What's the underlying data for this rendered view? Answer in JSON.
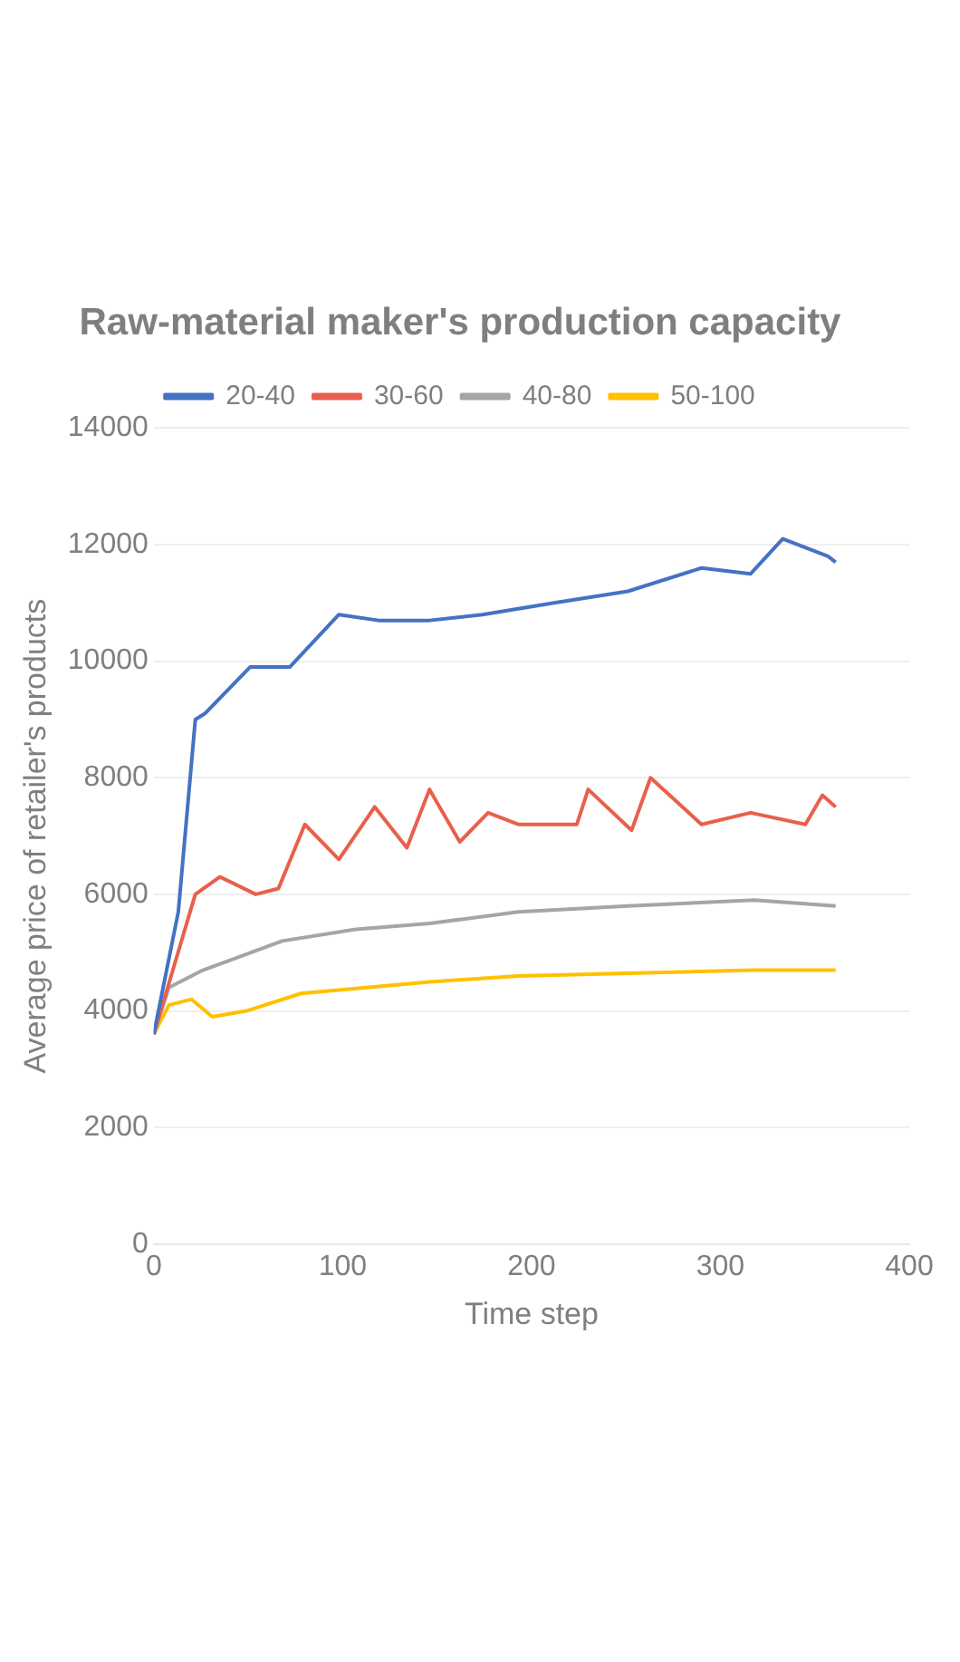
{
  "chart_data": {
    "type": "line",
    "title": "Raw-material maker's production capacity",
    "xlabel": "Time step",
    "ylabel": "Average price of retailer's products",
    "xlim": [
      0,
      400
    ],
    "xticks": [
      0,
      100,
      200,
      300,
      400
    ],
    "ylim": [
      0,
      14000
    ],
    "yticks": [
      0,
      2000,
      4000,
      6000,
      8000,
      10000,
      12000,
      14000
    ],
    "grid": "y",
    "legend": "top",
    "marker": "none",
    "line_style": "solid",
    "series": [
      {
        "name": "20-40",
        "color": "#4472c4",
        "x": [
          0,
          13,
          22,
          27,
          51,
          72,
          98,
          119,
          146,
          174,
          212,
          251,
          290,
          316,
          333,
          357,
          361
        ],
        "values": [
          3600,
          5700,
          9000,
          9100,
          9900,
          9900,
          10800,
          10700,
          10700,
          10800,
          11000,
          11200,
          11600,
          11500,
          12100,
          11800,
          11700
        ]
      },
      {
        "name": "30-60",
        "color": "#e8604c",
        "x": [
          0,
          22,
          35,
          54,
          66,
          80,
          98,
          117,
          134,
          146,
          162,
          177,
          193,
          224,
          230,
          253,
          263,
          290,
          316,
          345,
          354,
          361
        ],
        "values": [
          3600,
          6000,
          6300,
          6000,
          6100,
          7200,
          6600,
          7500,
          6800,
          7800,
          6900,
          7400,
          7200,
          7200,
          7800,
          7100,
          8000,
          7200,
          7400,
          7200,
          7700,
          7500
        ]
      },
      {
        "name": "40-80",
        "color": "#a5a5a5",
        "x": [
          0,
          8,
          26,
          43,
          68,
          107,
          146,
          193,
          251,
          318,
          361
        ],
        "values": [
          3600,
          4400,
          4700,
          4900,
          5200,
          5400,
          5500,
          5700,
          5800,
          5900,
          5800
        ]
      },
      {
        "name": "50-100",
        "color": "#ffc000",
        "x": [
          0,
          8,
          20,
          31,
          49,
          78,
          146,
          193,
          318,
          361
        ],
        "values": [
          3600,
          4100,
          4200,
          3900,
          4000,
          4300,
          4500,
          4600,
          4700,
          4700
        ]
      }
    ]
  }
}
